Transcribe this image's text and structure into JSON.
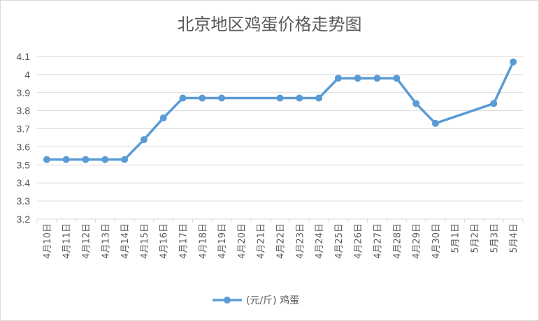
{
  "chart_data": {
    "type": "line",
    "title": "北京地区鸡蛋价格走势图",
    "xlabel": "",
    "ylabel": "",
    "ylim": [
      3.2,
      4.1
    ],
    "yticks": [
      "3.2",
      "3.3",
      "3.4",
      "3.5",
      "3.6",
      "3.7",
      "3.8",
      "3.9",
      "4",
      "4.1"
    ],
    "grid": true,
    "legend_position": "bottom",
    "categories": [
      "4月10日",
      "4月11日",
      "4月12日",
      "4月13日",
      "4月14日",
      "4月15日",
      "4月16日",
      "4月17日",
      "4月18日",
      "4月19日",
      "4月20日",
      "4月21日",
      "4月22日",
      "4月23日",
      "4月24日",
      "4月25日",
      "4月26日",
      "4月27日",
      "4月28日",
      "4月29日",
      "4月30日",
      "5月1日",
      "5月2日",
      "5月3日",
      "5月4日"
    ],
    "series": [
      {
        "name": "(元/斤) 鸡蛋",
        "color": "#5b9bd5",
        "values": [
          3.53,
          3.53,
          3.53,
          3.53,
          3.53,
          3.64,
          3.76,
          3.87,
          3.87,
          3.87,
          null,
          null,
          3.87,
          3.87,
          3.87,
          3.98,
          3.98,
          3.98,
          3.98,
          3.84,
          3.73,
          null,
          null,
          3.84,
          4.07
        ]
      }
    ]
  }
}
